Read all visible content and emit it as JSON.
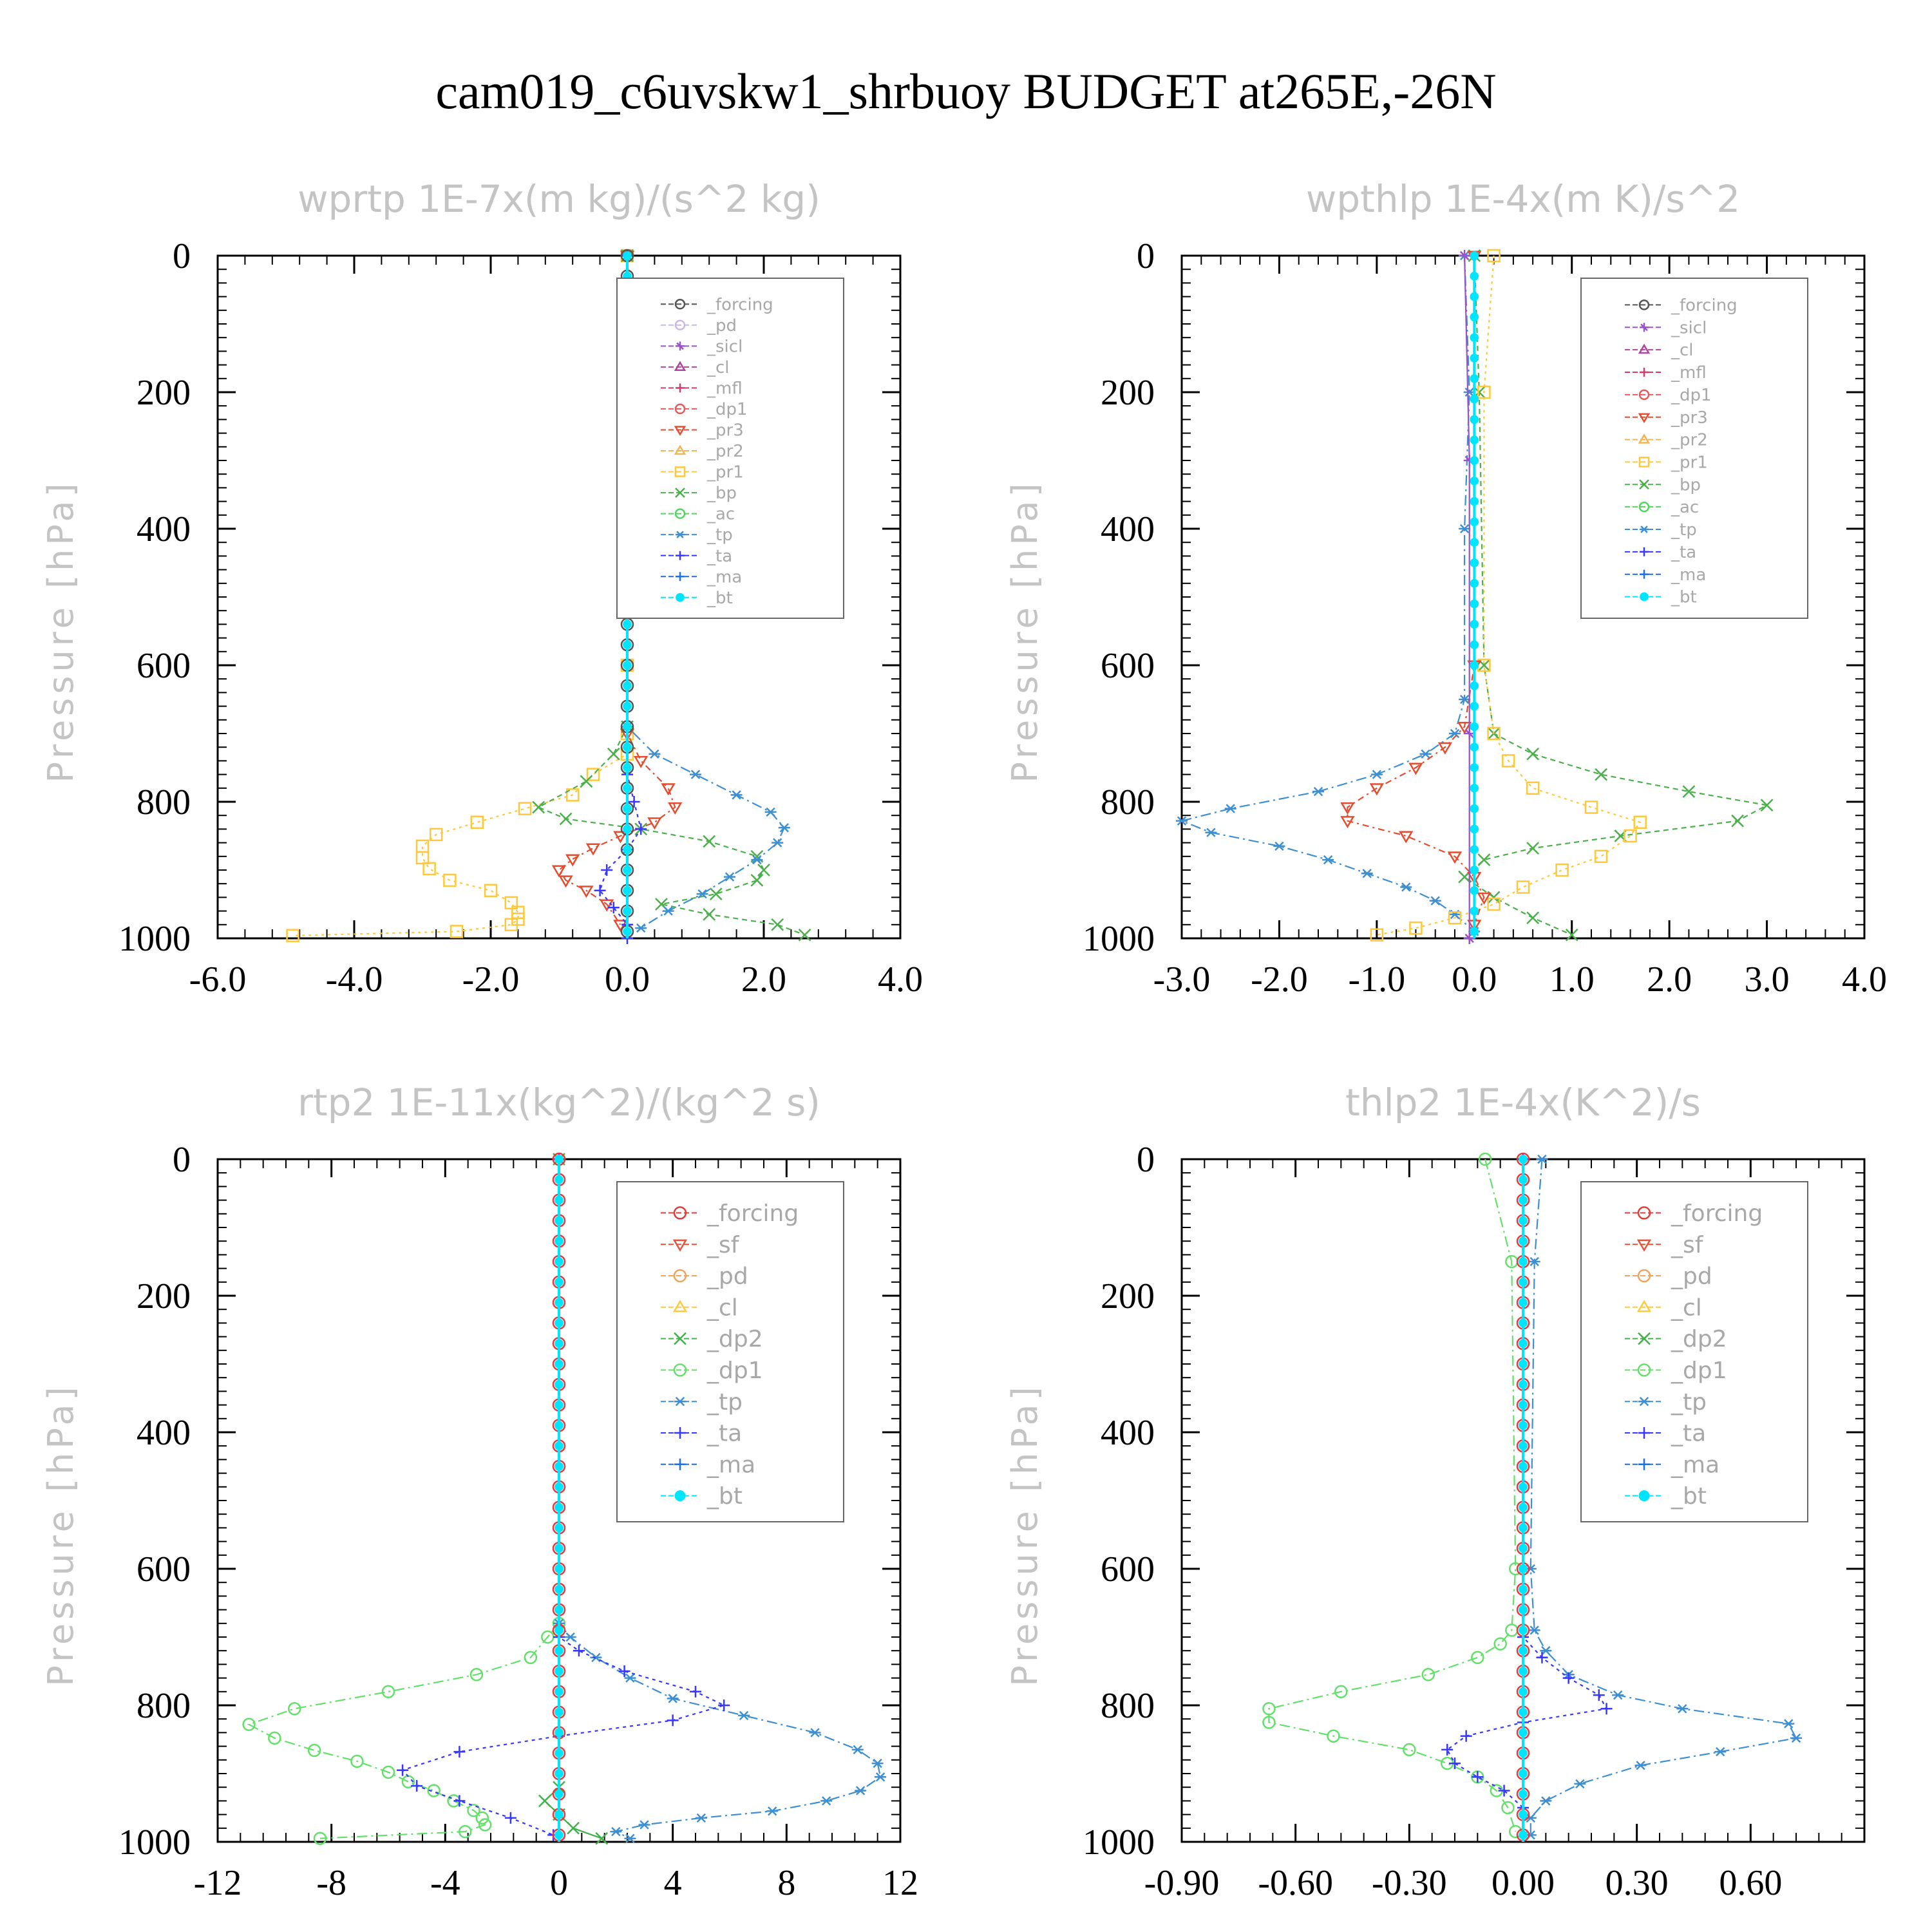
{
  "title": "cam019_c6uvskw1_shrbuoy  BUDGET at265E,-26N",
  "colors": {
    "forcing": "#555555",
    "pd": "#c9b7e6",
    "sicl": "#9a52c8",
    "cl": "#b0449c",
    "mfl": "#d33a6a",
    "dp1": "#e55a5a",
    "pr3": "#e64b2d",
    "pr2": "#f2b552",
    "pr1": "#ffc83b",
    "bp": "#4bb04b",
    "ac": "#4fd65c",
    "tp": "#3e8fd2",
    "ta": "#3737ff",
    "ma": "#1e6fe6",
    "bt": "#00e5ff",
    "forcing2": "#e53a3a",
    "sf": "#e4533a",
    "pd2": "#f0a35a",
    "cl2": "#ffc93a",
    "dp2": "#3fb34a",
    "dp1g": "#63e06a"
  },
  "chart_data": [
    {
      "type": "line",
      "orientation": "vertical-profile",
      "title": "wprtp  1E-7x(m kg)/(s^2 kg)",
      "ylabel": "Pressure [hPa]",
      "xlim": [
        -6,
        4
      ],
      "ylim": [
        1000,
        0
      ],
      "xticks": [
        -6,
        -4,
        -2,
        0,
        2,
        4
      ],
      "xtick_labels": [
        "-6.0",
        "-4.0",
        "-2.0",
        "0.0",
        "2.0",
        "4.0"
      ],
      "yticks": [
        0,
        200,
        400,
        600,
        800,
        1000
      ],
      "ytick_labels": [
        "0",
        "200",
        "400",
        "600",
        "800",
        "1000"
      ],
      "legend": [
        "_forcing",
        "_pd",
        "_sicl",
        "_cl",
        "_mfl",
        "_dp1",
        "_pr3",
        "_pr2",
        "_pr1",
        "_bp",
        "_ac",
        "_tp",
        "_ta",
        "_ma",
        "_bt"
      ],
      "series": [
        {
          "name": "_pr1",
          "color": "pr1",
          "marker": "square",
          "dash": "4,6",
          "x": [
            0,
            0,
            0,
            0,
            0,
            -0.5,
            -0.8,
            -1.5,
            -2.2,
            -2.8,
            -3.0,
            -3.0,
            -2.9,
            -2.6,
            -2.0,
            -1.7,
            -1.6,
            -1.6,
            -1.7,
            -2.5,
            -4.9
          ],
          "y": [
            0,
            400,
            600,
            700,
            730,
            760,
            790,
            810,
            830,
            848,
            865,
            882,
            898,
            915,
            930,
            948,
            962,
            972,
            980,
            990,
            996
          ]
        },
        {
          "name": "_bp",
          "color": "bp",
          "marker": "x",
          "dash": "8,6",
          "x": [
            0,
            0,
            -0.2,
            -0.6,
            -1.3,
            -0.9,
            0.2,
            1.2,
            1.9,
            2.0,
            1.9,
            1.3,
            0.5,
            1.2,
            2.2,
            2.6
          ],
          "y": [
            0,
            690,
            730,
            770,
            808,
            825,
            840,
            858,
            880,
            900,
            915,
            935,
            950,
            965,
            980,
            995
          ]
        },
        {
          "name": "_tp",
          "color": "tp",
          "marker": "asterisk",
          "dash": "16,6,3,6",
          "x": [
            0,
            0,
            0.4,
            1.0,
            1.6,
            2.1,
            2.3,
            2.2,
            1.9,
            1.5,
            1.1,
            0.6,
            0.2
          ],
          "y": [
            0,
            690,
            730,
            760,
            790,
            815,
            838,
            860,
            885,
            910,
            935,
            960,
            985
          ]
        },
        {
          "name": "_pr3",
          "color": "pr3",
          "marker": "tri-down",
          "dash": "10,6,3,6",
          "x": [
            0,
            0,
            0.2,
            0.6,
            0.7,
            0.4,
            -0.1,
            -0.5,
            -0.8,
            -1.0,
            -0.9,
            -0.6,
            -0.3,
            -0.1
          ],
          "y": [
            0,
            700,
            740,
            780,
            808,
            830,
            850,
            868,
            884,
            900,
            915,
            930,
            950,
            980
          ]
        },
        {
          "name": "_ta",
          "color": "ta",
          "marker": "plus",
          "dash": "5,6",
          "x": [
            0,
            0,
            0.1,
            0.2,
            0,
            -0.3,
            -0.4,
            -0.2,
            0,
            0
          ],
          "y": [
            0,
            760,
            800,
            840,
            870,
            900,
            930,
            955,
            980,
            1000
          ]
        },
        {
          "name": "_forcing",
          "color": "forcing",
          "marker": "circle",
          "dash": "",
          "x": [
            0,
            0
          ],
          "y": [
            0,
            1000
          ]
        },
        {
          "name": "_bt",
          "color": "bt",
          "marker": "dot",
          "dash": "",
          "x": [
            0,
            0
          ],
          "y": [
            0,
            1000
          ]
        }
      ]
    },
    {
      "type": "line",
      "orientation": "vertical-profile",
      "title": "wpthlp  1E-4x(m K)/s^2",
      "ylabel": "Pressure [hPa]",
      "xlim": [
        -3,
        4
      ],
      "ylim": [
        1000,
        0
      ],
      "xticks": [
        -3,
        -2,
        -1,
        0,
        1,
        2,
        3,
        4
      ],
      "xtick_labels": [
        "-3.0",
        "-2.0",
        "-1.0",
        "0.0",
        "1.0",
        "2.0",
        "3.0",
        "4.0"
      ],
      "yticks": [
        0,
        200,
        400,
        600,
        800,
        1000
      ],
      "ytick_labels": [
        "0",
        "200",
        "400",
        "600",
        "800",
        "1000"
      ],
      "legend": [
        "_forcing",
        "_sicl",
        "_cl",
        "_mfl",
        "_dp1",
        "_pr3",
        "_pr2",
        "_pr1",
        "_bp",
        "_ac",
        "_tp",
        "_ta",
        "_ma",
        "_bt"
      ],
      "series": [
        {
          "name": "_tp",
          "color": "tp",
          "marker": "asterisk",
          "dash": "16,6,3,6",
          "x": [
            -0.1,
            -0.05,
            -0.1,
            -0.1,
            -0.2,
            -0.5,
            -1.0,
            -1.6,
            -2.5,
            -3.0,
            -2.7,
            -2.0,
            -1.5,
            -1.1,
            -0.7,
            -0.4,
            -0.2,
            0
          ],
          "y": [
            0,
            200,
            400,
            650,
            700,
            730,
            760,
            785,
            810,
            828,
            845,
            865,
            885,
            905,
            925,
            945,
            965,
            990
          ]
        },
        {
          "name": "_bp",
          "color": "bp",
          "marker": "x",
          "dash": "8,6",
          "x": [
            0,
            0.05,
            0.1,
            0.2,
            0.6,
            1.3,
            2.2,
            3.0,
            2.7,
            1.5,
            0.6,
            0.1,
            -0.1,
            0.2,
            0.6,
            1.0
          ],
          "y": [
            0,
            200,
            600,
            700,
            730,
            760,
            785,
            805,
            828,
            850,
            868,
            885,
            910,
            940,
            970,
            995
          ]
        },
        {
          "name": "_pr1",
          "color": "pr1",
          "marker": "square",
          "dash": "4,6",
          "x": [
            0.2,
            0.1,
            0.1,
            0.2,
            0.35,
            0.6,
            1.2,
            1.7,
            1.6,
            1.3,
            0.9,
            0.5,
            0.2,
            -0.2,
            -0.6,
            -1.0
          ],
          "y": [
            0,
            200,
            600,
            700,
            740,
            780,
            808,
            830,
            850,
            880,
            900,
            925,
            950,
            970,
            985,
            995
          ]
        },
        {
          "name": "_pr3",
          "color": "pr3",
          "marker": "tri-down",
          "dash": "10,6,3,6",
          "x": [
            0,
            0,
            -0.1,
            -0.3,
            -0.6,
            -1.0,
            -1.3,
            -1.3,
            -0.7,
            -0.2,
            0,
            0.1,
            0
          ],
          "y": [
            0,
            600,
            690,
            720,
            750,
            780,
            808,
            828,
            850,
            880,
            910,
            940,
            980
          ]
        },
        {
          "name": "_sicl",
          "color": "sicl",
          "marker": "star",
          "dash": "",
          "x": [
            -0.1,
            -0.05,
            -0.05,
            -0.05
          ],
          "y": [
            0,
            300,
            700,
            1000
          ]
        },
        {
          "name": "_bt",
          "color": "bt",
          "marker": "dot",
          "dash": "",
          "x": [
            0,
            0
          ],
          "y": [
            0,
            1000
          ]
        }
      ]
    },
    {
      "type": "line",
      "orientation": "vertical-profile",
      "title": "rtp2  1E-11x(kg^2)/(kg^2 s)",
      "ylabel": "Pressure [hPa]",
      "xlim": [
        -12,
        12
      ],
      "ylim": [
        1000,
        0
      ],
      "xticks": [
        -12,
        -8,
        -4,
        0,
        4,
        8,
        12
      ],
      "xtick_labels": [
        "-12",
        "-8",
        "-4",
        "0",
        "4",
        "8",
        "12"
      ],
      "yticks": [
        0,
        200,
        400,
        600,
        800,
        1000
      ],
      "ytick_labels": [
        "0",
        "200",
        "400",
        "600",
        "800",
        "1000"
      ],
      "legend": [
        "_forcing",
        "_sf",
        "_pd",
        "_cl",
        "_dp2",
        "_dp1",
        "_tp",
        "_ta",
        "_ma",
        "_bt"
      ],
      "series": [
        {
          "name": "_dp1",
          "color": "dp1g",
          "marker": "circle",
          "dash": "16,6,3,6",
          "x": [
            0,
            0,
            -0.4,
            -1.0,
            -2.9,
            -6.0,
            -9.3,
            -10.9,
            -10.0,
            -8.6,
            -7.1,
            -6.0,
            -5.3,
            -4.4,
            -3.7,
            -3.0,
            -2.7,
            -2.6,
            -3.3,
            -8.4
          ],
          "y": [
            0,
            680,
            700,
            730,
            755,
            780,
            805,
            828,
            848,
            866,
            882,
            898,
            912,
            925,
            940,
            954,
            965,
            975,
            985,
            995
          ]
        },
        {
          "name": "_tp",
          "color": "tp",
          "marker": "asterisk",
          "dash": "16,6,3,6",
          "x": [
            0,
            0,
            0.4,
            1.3,
            2.5,
            4.0,
            6.5,
            9.0,
            10.5,
            11.2,
            11.3,
            10.6,
            9.4,
            7.5,
            5.0,
            3.0,
            2.0,
            2.5
          ],
          "y": [
            0,
            680,
            700,
            730,
            760,
            790,
            815,
            840,
            865,
            885,
            905,
            925,
            940,
            955,
            965,
            975,
            985,
            995
          ]
        },
        {
          "name": "_ta",
          "color": "ta",
          "marker": "plus",
          "dash": "5,6",
          "x": [
            0,
            0,
            0.7,
            2.3,
            4.8,
            5.8,
            4.0,
            0,
            -3.5,
            -5.5,
            -5.0,
            -3.5,
            -1.7,
            -0.2
          ],
          "y": [
            0,
            700,
            720,
            750,
            780,
            800,
            822,
            845,
            868,
            895,
            918,
            940,
            965,
            990
          ]
        },
        {
          "name": "_dp2",
          "color": "dp2",
          "marker": "x",
          "dash": "",
          "x": [
            0,
            0,
            -0.5,
            0,
            0.5,
            1.5
          ],
          "y": [
            0,
            920,
            940,
            960,
            980,
            995
          ]
        },
        {
          "name": "_forcing",
          "color": "forcing2",
          "marker": "circle",
          "dash": "",
          "x": [
            0,
            0
          ],
          "y": [
            0,
            1000
          ]
        },
        {
          "name": "_bt",
          "color": "bt",
          "marker": "dot",
          "dash": "",
          "x": [
            0,
            0
          ],
          "y": [
            0,
            1000
          ]
        }
      ]
    },
    {
      "type": "line",
      "orientation": "vertical-profile",
      "title": "thlp2  1E-4x(K^2)/s",
      "ylabel": "Pressure [hPa]",
      "xlim": [
        -0.9,
        0.9
      ],
      "ylim": [
        1000,
        0
      ],
      "xticks": [
        -0.9,
        -0.6,
        -0.3,
        0,
        0.3,
        0.6
      ],
      "xtick_labels": [
        "-0.90",
        "-0.60",
        "-0.30",
        "0.00",
        "0.30",
        "0.60"
      ],
      "yticks": [
        0,
        200,
        400,
        600,
        800,
        1000
      ],
      "ytick_labels": [
        "0",
        "200",
        "400",
        "600",
        "800",
        "1000"
      ],
      "legend": [
        "_forcing",
        "_sf",
        "_pd",
        "_cl",
        "_dp2",
        "_dp1",
        "_tp",
        "_ta",
        "_ma",
        "_bt"
      ],
      "series": [
        {
          "name": "_dp1",
          "color": "dp1g",
          "marker": "circle",
          "dash": "16,6,3,6",
          "x": [
            -0.1,
            -0.03,
            -0.02,
            -0.03,
            -0.06,
            -0.12,
            -0.25,
            -0.48,
            -0.67,
            -0.67,
            -0.5,
            -0.3,
            -0.2,
            -0.12,
            -0.07,
            -0.04,
            -0.02
          ],
          "y": [
            0,
            150,
            600,
            690,
            710,
            730,
            755,
            780,
            805,
            825,
            845,
            865,
            885,
            905,
            925,
            950,
            985
          ]
        },
        {
          "name": "_tp",
          "color": "tp",
          "marker": "asterisk",
          "dash": "16,6,3,6",
          "x": [
            0.05,
            0.03,
            0.02,
            0.03,
            0.06,
            0.12,
            0.25,
            0.42,
            0.7,
            0.72,
            0.52,
            0.31,
            0.15,
            0.06,
            0.02,
            0.02
          ],
          "y": [
            0,
            150,
            600,
            690,
            720,
            755,
            785,
            805,
            827,
            848,
            868,
            888,
            915,
            940,
            965,
            990
          ]
        },
        {
          "name": "_ta",
          "color": "ta",
          "marker": "plus",
          "dash": "5,6",
          "x": [
            0,
            0,
            0.05,
            0.12,
            0.2,
            0.22,
            0,
            -0.15,
            -0.2,
            -0.18,
            -0.12,
            -0.05,
            0
          ],
          "y": [
            0,
            700,
            730,
            760,
            785,
            805,
            825,
            845,
            865,
            885,
            905,
            925,
            950
          ]
        },
        {
          "name": "_forcing",
          "color": "forcing2",
          "marker": "circle",
          "dash": "",
          "x": [
            0,
            0
          ],
          "y": [
            0,
            1000
          ]
        },
        {
          "name": "_bt",
          "color": "bt",
          "marker": "dot",
          "dash": "",
          "x": [
            0,
            0
          ],
          "y": [
            0,
            1000
          ]
        }
      ]
    }
  ]
}
